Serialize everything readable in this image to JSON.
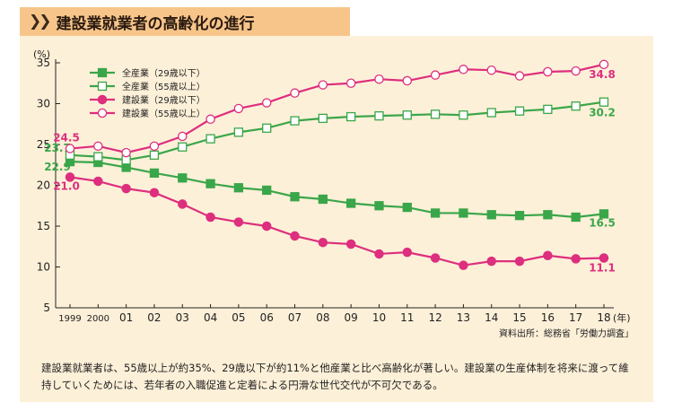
{
  "header": {
    "title": "建設業就業者の高齢化の進行"
  },
  "chart_data": {
    "type": "line",
    "ylabel": "(%)",
    "xunit": "(年)",
    "ylim": [
      5,
      35
    ],
    "yticks": [
      5,
      10,
      15,
      20,
      25,
      30,
      35
    ],
    "categories": [
      "1999",
      "2000",
      "01",
      "02",
      "03",
      "04",
      "05",
      "06",
      "07",
      "08",
      "09",
      "10",
      "11",
      "12",
      "13",
      "14",
      "15",
      "16",
      "17",
      "18"
    ],
    "legend_position": "top-left",
    "series": [
      {
        "name": "全産業（29歳以下）",
        "color": "#3aa64a",
        "marker": "square-filled",
        "values": [
          22.9,
          22.8,
          22.2,
          21.5,
          20.9,
          20.2,
          19.7,
          19.4,
          18.6,
          18.3,
          17.8,
          17.5,
          17.3,
          16.6,
          16.6,
          16.4,
          16.3,
          16.4,
          16.1,
          16.5
        ],
        "labels": [
          {
            "i": 0,
            "text": "22.9"
          },
          {
            "i": 19,
            "text": "16.5"
          }
        ]
      },
      {
        "name": "全産業（55歳以上）",
        "color": "#3aa64a",
        "marker": "square-open",
        "values": [
          23.7,
          23.5,
          23.1,
          23.7,
          24.7,
          25.7,
          26.5,
          27.0,
          27.9,
          28.2,
          28.4,
          28.5,
          28.6,
          28.7,
          28.6,
          28.9,
          29.1,
          29.3,
          29.7,
          30.2
        ],
        "labels": [
          {
            "i": 0,
            "text": "23.7"
          },
          {
            "i": 19,
            "text": "30.2"
          }
        ]
      },
      {
        "name": "建設業（29歳以下）",
        "color": "#dd2f7e",
        "marker": "circle-filled",
        "values": [
          21.0,
          20.5,
          19.6,
          19.1,
          17.7,
          16.1,
          15.5,
          15.0,
          13.8,
          13.0,
          12.8,
          11.6,
          11.8,
          11.1,
          10.2,
          10.7,
          10.7,
          11.4,
          11.0,
          11.1
        ],
        "labels": [
          {
            "i": 0,
            "text": "21.0"
          },
          {
            "i": 19,
            "text": "11.1"
          }
        ]
      },
      {
        "name": "建設業（55歳以上）",
        "color": "#dd2f7e",
        "marker": "circle-open",
        "values": [
          24.5,
          24.8,
          24.0,
          24.8,
          26.0,
          28.1,
          29.4,
          30.1,
          31.3,
          32.3,
          32.5,
          33.0,
          32.8,
          33.5,
          34.2,
          34.1,
          33.4,
          33.9,
          34.0,
          34.8
        ],
        "labels": [
          {
            "i": 0,
            "text": "24.5"
          },
          {
            "i": 19,
            "text": "34.8"
          }
        ]
      }
    ],
    "source": "資料出所：総務省「労働力調査」"
  },
  "caption": "建設業就業者は、55歳以上が約35%、29歳以下が約11%と他産業と比べ高齢化が著しい。建設業の生産体制を将来に渡って維持していくためには、若年者の入職促進と定着による円滑な世代交代が不可欠である。"
}
